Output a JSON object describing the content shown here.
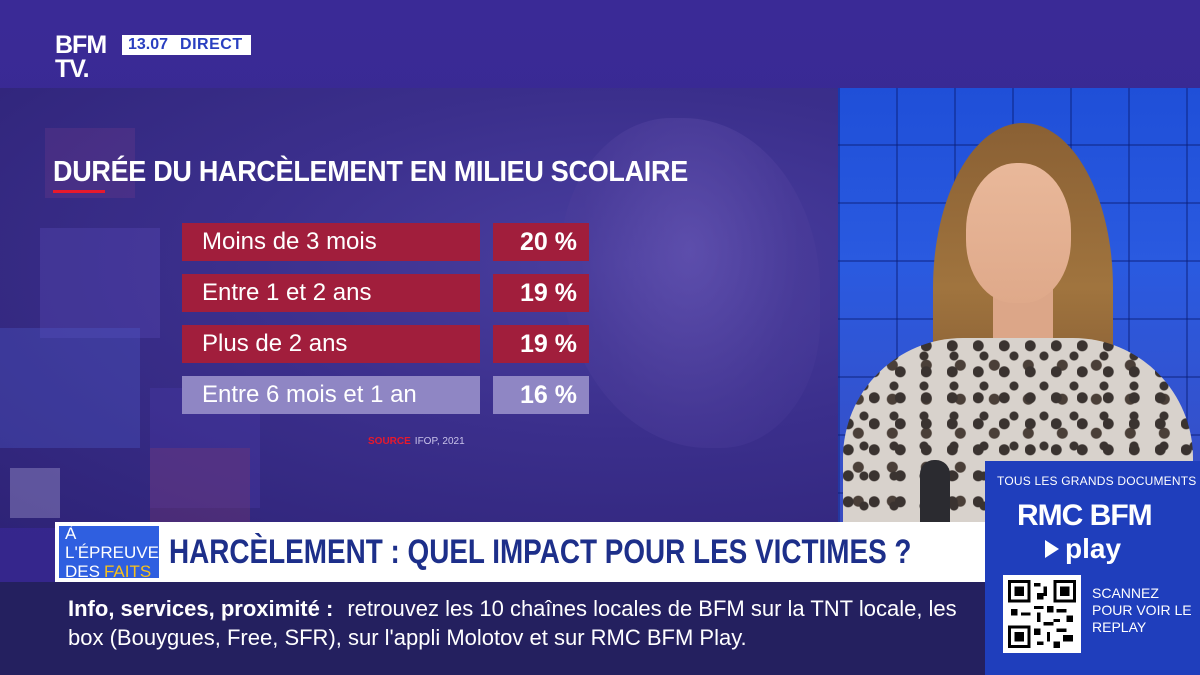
{
  "channel": {
    "logo_line1": "BFM",
    "logo_line2": "TV.",
    "time": "13.07",
    "live_label": "DIRECT"
  },
  "chart_data": {
    "type": "table",
    "title": "DURÉE DU HARCÈLEMENT EN MILIEU SCOLAIRE",
    "categories": [
      "Moins de 3 mois",
      "Entre 1 et 2 ans",
      "Plus de 2 ans",
      "Entre 6 mois et 1 an"
    ],
    "values": [
      20,
      19,
      19,
      16
    ],
    "value_labels": [
      "20 %",
      "19 %",
      "19 %",
      "16 %"
    ],
    "highlight_colors": [
      "#a11e3c",
      "#a11e3c",
      "#a11e3c",
      "#8f86c4"
    ],
    "source_key": "SOURCE",
    "source": "IFOP, 2021"
  },
  "banner": {
    "tag_line1": "À L'ÉPREUVE",
    "tag_line2a": "DES",
    "tag_line2b": "FAITS",
    "headline": "HARCÈLEMENT : QUEL IMPACT POUR LES VICTIMES ?"
  },
  "ticker": {
    "lead": "Info, services, proximité :",
    "text": "retrouvez les 10 chaînes locales de BFM sur la TNT locale, les box (Bouygues, Free, SFR), sur l'appli Molotov et sur RMC BFM Play."
  },
  "promo": {
    "top": "TOUS LES GRANDS DOCUMENTS SUR",
    "brand": "RMC BFM",
    "play": "play",
    "cta": "SCANNEZ POUR VOIR LE REPLAY"
  },
  "colors": {
    "accent_red": "#e8192c",
    "bar_red": "#a11e3c",
    "bar_muted": "#8f86c4",
    "brand_blue": "#2f5fe0",
    "headline_blue": "#1d2f8a"
  }
}
